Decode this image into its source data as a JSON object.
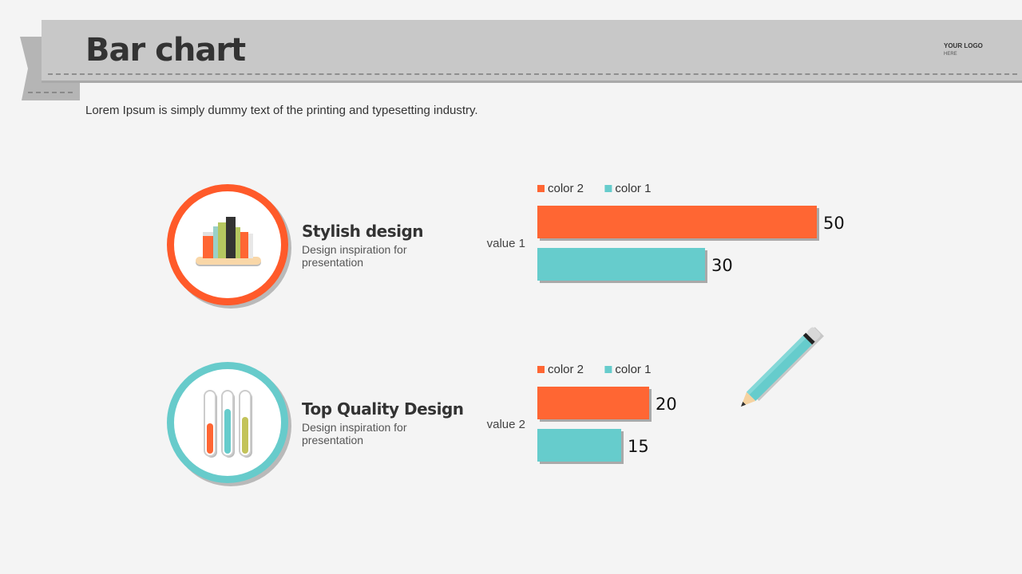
{
  "header": {
    "title": "Bar chart",
    "logo": "YOUR LOGO",
    "logo_sub": "HERE"
  },
  "subtitle": "Lorem Ipsum is simply dummy text of the printing and typesetting industry.",
  "features": [
    {
      "title": "Stylish design",
      "desc": "Design inspiration  for presentation",
      "icon": "books-icon",
      "accent": "#ff5a2a"
    },
    {
      "title": "Top Quality Design",
      "desc": "Design inspiration  for presentation",
      "icon": "test-tubes-icon",
      "accent": "#67cbcb"
    }
  ],
  "colors": {
    "color2": "#ff6633",
    "color1": "#66cccc",
    "shadow": "#a9a9a9"
  },
  "chart_data": [
    {
      "type": "bar",
      "orientation": "horizontal",
      "categories": [
        "value 1"
      ],
      "series": [
        {
          "name": "color 2",
          "values": [
            50
          ]
        },
        {
          "name": "color 1",
          "values": [
            30
          ]
        }
      ],
      "legend": [
        "color 2",
        "color 1"
      ],
      "xlim": [
        0,
        50
      ]
    },
    {
      "type": "bar",
      "orientation": "horizontal",
      "categories": [
        "value 2"
      ],
      "series": [
        {
          "name": "color 2",
          "values": [
            20
          ]
        },
        {
          "name": "color 1",
          "values": [
            15
          ]
        }
      ],
      "legend": [
        "color 2",
        "color 1"
      ],
      "xlim": [
        0,
        50
      ]
    }
  ]
}
